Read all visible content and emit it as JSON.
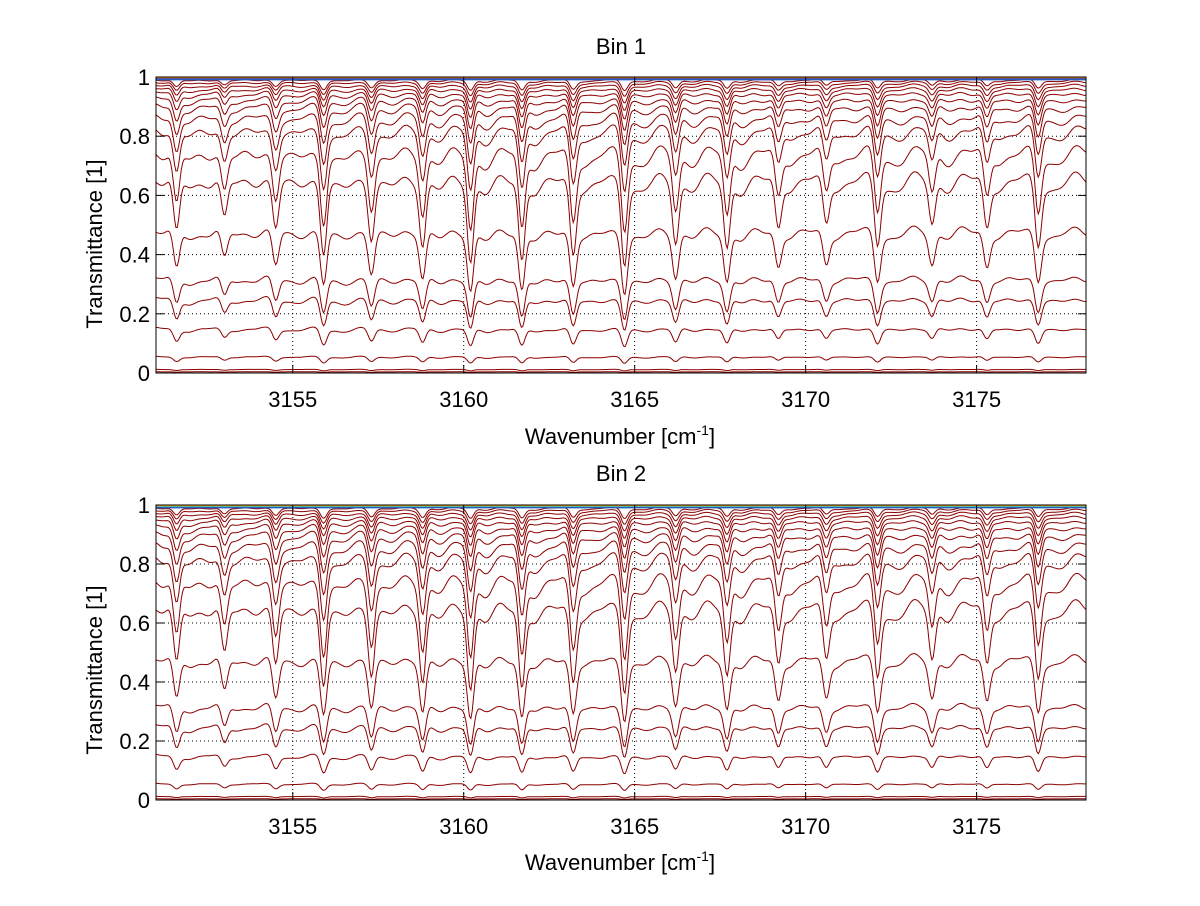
{
  "chart_data": [
    {
      "type": "line",
      "title": "Bin 1",
      "xlabel": "Wavenumber [cm",
      "xlabel_sup": "-1",
      "xlabel_tail": "]",
      "ylabel": "Transmittance [1]",
      "xlim": [
        3151,
        3178.2
      ],
      "ylim": [
        0,
        1
      ],
      "xticks": [
        3155,
        3160,
        3165,
        3170,
        3175
      ],
      "yticks": [
        0,
        0.2,
        0.4,
        0.6,
        0.8,
        1
      ],
      "ytick_labels": [
        "0",
        "0.2",
        "0.4",
        "0.6",
        "0.8",
        "1"
      ],
      "grid": true,
      "lines": [
        0.99,
        0.982,
        0.972,
        0.96,
        0.945,
        0.925,
        0.9,
        0.865,
        0.82,
        0.745,
        0.655,
        0.48,
        0.32,
        0.25,
        0.15,
        0.055,
        0.012,
        0.004
      ],
      "top_colors": [
        "#ff7f00",
        "#ffb000",
        "#0000ff",
        "#1f5fbf"
      ],
      "absorption_centers": [
        3151.6,
        3153.0,
        3154.5,
        3155.9,
        3157.3,
        3158.8,
        3160.2,
        3161.7,
        3163.2,
        3164.7,
        3166.2,
        3167.7,
        3169.2,
        3170.6,
        3172.1,
        3173.7,
        3175.3,
        3176.8
      ],
      "absorption_depths": [
        0.7,
        0.5,
        0.6,
        0.9,
        0.7,
        0.8,
        1.0,
        1.0,
        0.9,
        1.0,
        0.75,
        0.85,
        0.6,
        0.55,
        0.8,
        0.55,
        0.6,
        0.8
      ]
    },
    {
      "type": "line",
      "title": "Bin 2",
      "xlabel": "Wavenumber [cm",
      "xlabel_sup": "-1",
      "xlabel_tail": "]",
      "ylabel": "Transmittance [1]",
      "xlim": [
        3151,
        3178.2
      ],
      "ylim": [
        0,
        1
      ],
      "xticks": [
        3155,
        3160,
        3165,
        3170,
        3175
      ],
      "yticks": [
        0,
        0.2,
        0.4,
        0.6,
        0.8,
        1
      ],
      "ytick_labels": [
        "0",
        "0.2",
        "0.4",
        "0.6",
        "0.8",
        "1"
      ],
      "grid": true,
      "lines": [
        0.99,
        0.982,
        0.972,
        0.96,
        0.945,
        0.925,
        0.9,
        0.865,
        0.82,
        0.745,
        0.655,
        0.48,
        0.32,
        0.25,
        0.15,
        0.055,
        0.012,
        0.004
      ],
      "top_colors": [
        "#ff7f00",
        "#ffd000",
        "#00c0ff",
        "#1f5fbf"
      ],
      "absorption_centers": [
        3151.6,
        3153.0,
        3154.5,
        3155.9,
        3157.3,
        3158.8,
        3160.2,
        3161.7,
        3163.2,
        3164.7,
        3166.2,
        3167.7,
        3169.2,
        3170.6,
        3172.1,
        3173.7,
        3175.3,
        3176.8
      ],
      "absorption_depths": [
        0.75,
        0.6,
        0.7,
        0.95,
        0.8,
        0.9,
        1.0,
        1.0,
        0.9,
        1.0,
        0.75,
        0.85,
        0.7,
        0.65,
        0.85,
        0.65,
        0.7,
        0.85
      ]
    }
  ],
  "colors": {
    "line": "#8b0000",
    "grid": "#000000",
    "axis": "#000000"
  }
}
